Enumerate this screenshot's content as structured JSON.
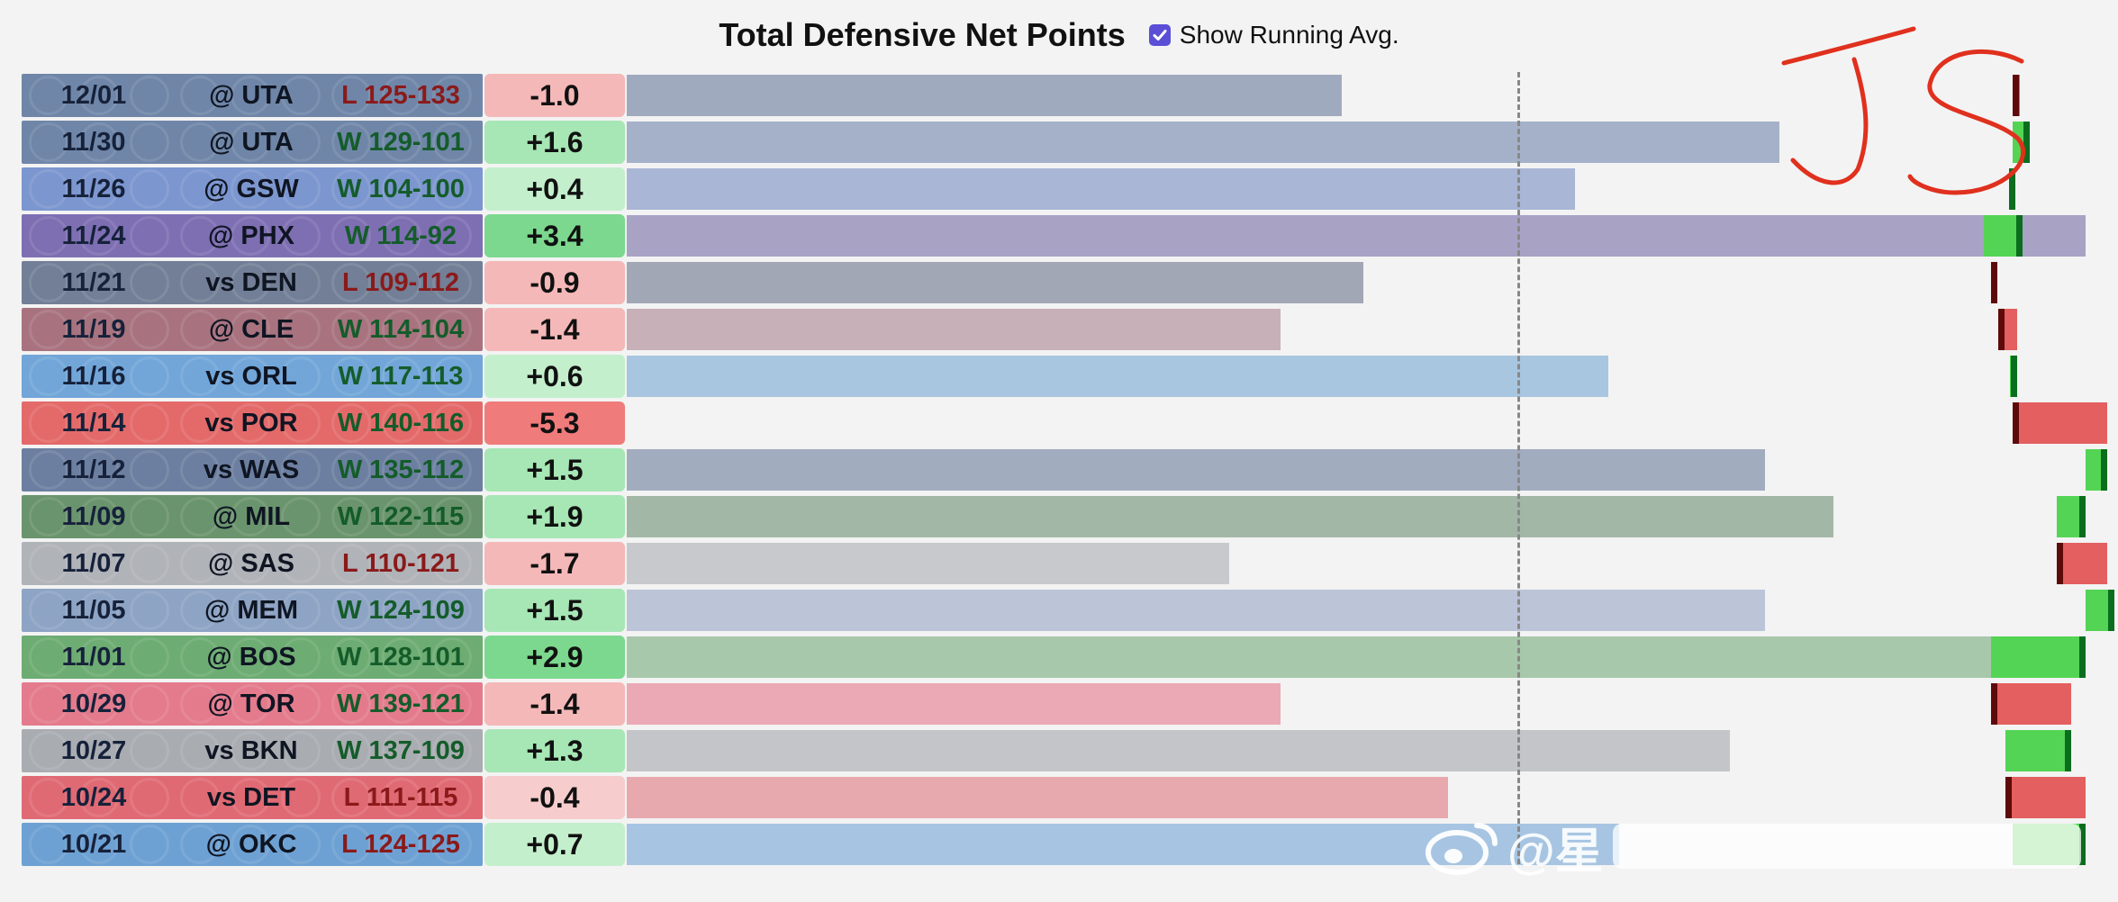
{
  "header": {
    "title": "Total Defensive Net Points",
    "toggle_label": "Show Running Avg.",
    "toggle_checked": true
  },
  "watermark": {
    "text": "@星"
  },
  "chart_data": {
    "type": "bar",
    "title": "Total Defensive Net Points",
    "grid": false,
    "columns": [
      "date",
      "opponent",
      "result",
      "net"
    ],
    "rows": [
      {
        "date": "12/01",
        "opponent": "@ UTA",
        "result": "L 125-133",
        "win": false,
        "net": -1.0,
        "net_label": "-1.0",
        "total": 0.49,
        "avg_before": 0.95,
        "avg_after": 0.955,
        "team_color": "#6f86a8",
        "bar_color": "#a0aabf"
      },
      {
        "date": "11/30",
        "opponent": "@ UTA",
        "result": "W 129-101",
        "win": true,
        "net": 1.6,
        "net_label": "+1.6",
        "total": 0.79,
        "avg_before": 0.95,
        "avg_after": 0.962,
        "team_color": "#6f86a8",
        "bar_color": "#a4b1c8"
      },
      {
        "date": "11/26",
        "opponent": "@ GSW",
        "result": "W 104-100",
        "win": true,
        "net": 0.4,
        "net_label": "+0.4",
        "total": 0.65,
        "avg_before": 0.948,
        "avg_after": 0.952,
        "team_color": "#7c96cf",
        "bar_color": "#a9b6d6"
      },
      {
        "date": "11/24",
        "opponent": "@ PHX",
        "result": "W 114-92",
        "win": true,
        "net": 3.4,
        "net_label": "+3.4",
        "total": 1.0,
        "avg_before": 0.93,
        "avg_after": 0.957,
        "team_color": "#7e6fb3",
        "bar_color": "#a8a2c5"
      },
      {
        "date": "11/21",
        "opponent": "vs DEN",
        "result": "L 109-112",
        "win": false,
        "net": -0.9,
        "net_label": "-0.9",
        "total": 0.505,
        "avg_before": 0.935,
        "avg_after": 0.938,
        "team_color": "#727f96",
        "bar_color": "#a2a7b5"
      },
      {
        "date": "11/19",
        "opponent": "@ CLE",
        "result": "W 114-104",
        "win": true,
        "net": -1.4,
        "net_label": "-1.4",
        "total": 0.448,
        "avg_before": 0.94,
        "avg_after": 0.953,
        "team_color": "#a8737f",
        "bar_color": "#c7b0b7"
      },
      {
        "date": "11/16",
        "opponent": "vs ORL",
        "result": "W 117-113",
        "win": true,
        "net": 0.6,
        "net_label": "+0.6",
        "total": 0.673,
        "avg_before": 0.948,
        "avg_after": 0.953,
        "team_color": "#72a6d9",
        "bar_color": "#a8c6e0"
      },
      {
        "date": "11/14",
        "opponent": "vs POR",
        "result": "W 140-116",
        "win": true,
        "net": -5.3,
        "net_label": "-5.3",
        "total": 0.0,
        "avg_before": 0.95,
        "avg_after": 1.015,
        "team_color": "#e46a6a",
        "bar_color": "#e46a6a"
      },
      {
        "date": "11/12",
        "opponent": "vs WAS",
        "result": "W 135-112",
        "win": true,
        "net": 1.5,
        "net_label": "+1.5",
        "total": 0.78,
        "avg_before": 1.0,
        "avg_after": 1.015,
        "team_color": "#6c7fa0",
        "bar_color": "#a2acbf"
      },
      {
        "date": "11/09",
        "opponent": "@ MIL",
        "result": "W 122-115",
        "win": true,
        "net": 1.9,
        "net_label": "+1.9",
        "total": 0.827,
        "avg_before": 0.98,
        "avg_after": 1.0,
        "team_color": "#6a946d",
        "bar_color": "#a3b7a6"
      },
      {
        "date": "11/07",
        "opponent": "@ SAS",
        "result": "L 110-121",
        "win": false,
        "net": -1.7,
        "net_label": "-1.7",
        "total": 0.413,
        "avg_before": 0.98,
        "avg_after": 1.015,
        "team_color": "#b0b3b8",
        "bar_color": "#c8c9cc"
      },
      {
        "date": "11/05",
        "opponent": "@ MEM",
        "result": "W 124-109",
        "win": true,
        "net": 1.5,
        "net_label": "+1.5",
        "total": 0.78,
        "avg_before": 1.0,
        "avg_after": 1.02,
        "team_color": "#8ea4c4",
        "bar_color": "#bcc5d8"
      },
      {
        "date": "11/01",
        "opponent": "@ BOS",
        "result": "W 128-101",
        "win": true,
        "net": 2.9,
        "net_label": "+2.9",
        "total": 0.945,
        "avg_before": 0.935,
        "avg_after": 1.0,
        "team_color": "#6dac72",
        "bar_color": "#a8c8ab"
      },
      {
        "date": "10/29",
        "opponent": "@ TOR",
        "result": "W 139-121",
        "win": true,
        "net": -1.4,
        "net_label": "-1.4",
        "total": 0.448,
        "avg_before": 0.935,
        "avg_after": 0.99,
        "team_color": "#e47b8d",
        "bar_color": "#eaa9b4"
      },
      {
        "date": "10/27",
        "opponent": "vs BKN",
        "result": "W 137-109",
        "win": true,
        "net": 1.3,
        "net_label": "+1.3",
        "total": 0.756,
        "avg_before": 0.945,
        "avg_after": 0.99,
        "team_color": "#a9acb1",
        "bar_color": "#c4c5c9"
      },
      {
        "date": "10/24",
        "opponent": "vs DET",
        "result": "L 111-115",
        "win": false,
        "net": -0.4,
        "net_label": "-0.4",
        "total": 0.563,
        "avg_before": 0.945,
        "avg_after": 1.0,
        "team_color": "#e06a74",
        "bar_color": "#e8a9ae"
      },
      {
        "date": "10/21",
        "opponent": "@ OKC",
        "result": "L 124-125",
        "win": false,
        "net": 0.7,
        "net_label": "+0.7",
        "total": 0.68,
        "avg_before": 0.95,
        "avg_after": 1.0,
        "team_color": "#6ea1d3",
        "bar_color": "#a7c5e2"
      }
    ]
  },
  "colors": {
    "positive_fill": "#54d454",
    "positive_edge": "#0a6e1e",
    "negative_fill": "#e45f5f",
    "negative_edge": "#5e0a0a",
    "value_strong_pos": "#7cd88e",
    "value_pos": "#a7e6b5",
    "value_light_pos": "#c4efcd",
    "value_neg": "#f5b8b8",
    "value_light_neg": "#f6cccc",
    "value_strong_neg": "#ef7b7b"
  }
}
